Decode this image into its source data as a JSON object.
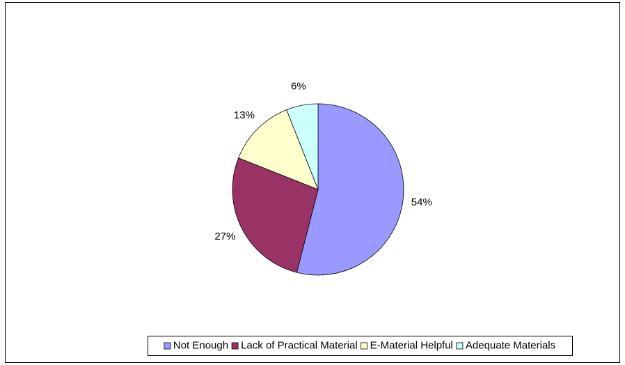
{
  "chart_data": {
    "type": "pie",
    "categories": [
      "Not Enough",
      "Lack of Practical Material",
      "E-Material Helpful",
      "Adequate Materials"
    ],
    "values": [
      54,
      27,
      13,
      6
    ],
    "value_labels": [
      "54%",
      "27%",
      "13%",
      "6%"
    ],
    "colors": [
      "#9999ff",
      "#993366",
      "#ffffcc",
      "#ccffff"
    ],
    "legend": "bottom"
  }
}
